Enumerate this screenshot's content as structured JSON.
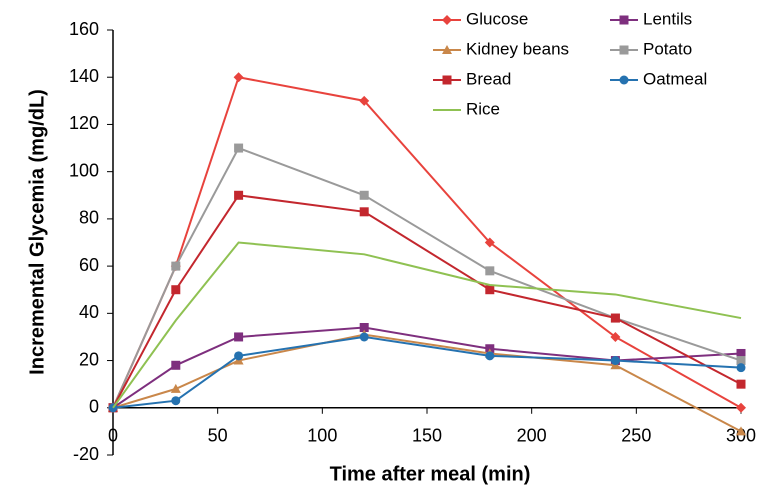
{
  "chart_data": {
    "type": "line",
    "x_label": "Time after meal (min)",
    "y_label": "Incremental Glycemia (mg/dL)",
    "x": [
      0,
      30,
      60,
      120,
      180,
      240,
      300
    ],
    "series": [
      {
        "name": "Glucose",
        "color": "#e8433d",
        "marker": "diamond",
        "values": [
          0,
          60,
          140,
          130,
          70,
          30,
          0
        ]
      },
      {
        "name": "Lentils",
        "color": "#7e2f7e",
        "marker": "square",
        "values": [
          0,
          18,
          30,
          34,
          25,
          20,
          23
        ]
      },
      {
        "name": "Kidney beans",
        "color": "#c9874a",
        "marker": "triangle",
        "values": [
          0,
          8,
          20,
          31,
          23,
          18,
          -10
        ]
      },
      {
        "name": "Potato",
        "color": "#9a9a9a",
        "marker": "square",
        "values": [
          0,
          60,
          110,
          90,
          58,
          38,
          20
        ]
      },
      {
        "name": "Bread",
        "color": "#c3272e",
        "marker": "square",
        "values": [
          0,
          50,
          90,
          83,
          50,
          38,
          10
        ]
      },
      {
        "name": "Oatmeal",
        "color": "#2572b0",
        "marker": "circle",
        "values": [
          0,
          3,
          22,
          30,
          22,
          20,
          17
        ]
      },
      {
        "name": "Rice",
        "color": "#8fc152",
        "marker": "none",
        "values": [
          0,
          37,
          70,
          65,
          52,
          48,
          38
        ]
      }
    ],
    "xlim": [
      0,
      300
    ],
    "xticks": [
      0,
      50,
      100,
      150,
      200,
      250,
      300
    ],
    "ylim": [
      -20,
      160
    ],
    "yticks": [
      -20,
      0,
      20,
      40,
      60,
      80,
      100,
      120,
      140,
      160
    ],
    "grid": false
  }
}
